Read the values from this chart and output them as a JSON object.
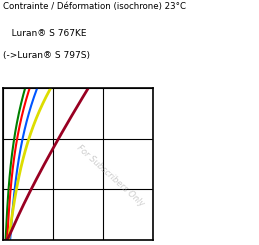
{
  "title_line1": "Contrainte / Déformation (isochrone) 23°C",
  "title_line2": "   Luran® S 767KE",
  "title_line3": "(->Luran® S 797S)",
  "watermark": "For Subscribers Only",
  "lines": [
    {
      "color": "#008000",
      "lw": 1.5
    },
    {
      "color": "#FF0000",
      "lw": 1.5
    },
    {
      "color": "#0055FF",
      "lw": 1.5
    },
    {
      "color": "#DDDD00",
      "lw": 2.0
    },
    {
      "color": "#990022",
      "lw": 2.0
    }
  ],
  "background": "#FFFFFF",
  "grid_nx": 3,
  "grid_ny": 3
}
